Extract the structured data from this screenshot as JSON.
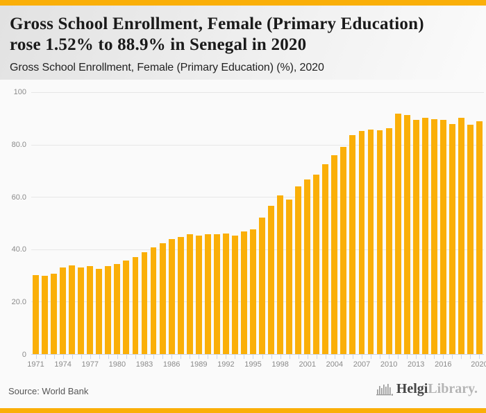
{
  "accent_color": "#FAAF08",
  "header": {
    "title_line1": "Gross School Enrollment, Female (Primary Education)",
    "title_line2": "rose 1.52% to 88.9% in Senegal in 2020",
    "subtitle": "Gross School Enrollment, Female (Primary Education) (%), 2020"
  },
  "chart_data": {
    "type": "bar",
    "title": "Gross School Enrollment, Female (Primary Education) rose 1.52% to 88.9% in Senegal in 2020",
    "subtitle": "Gross School Enrollment, Female (Primary Education) (%), 2020",
    "xlabel": "",
    "ylabel": "",
    "ylim": [
      0,
      100
    ],
    "grid": true,
    "legend": false,
    "bar_color": "#FAAF08",
    "grid_color": "#e6e6e6",
    "axis_color": "#ccd6eb",
    "tick_label_color": "#8a8a8a",
    "categories": [
      1971,
      1972,
      1973,
      1974,
      1975,
      1976,
      1977,
      1978,
      1979,
      1980,
      1981,
      1982,
      1983,
      1984,
      1985,
      1986,
      1987,
      1988,
      1989,
      1990,
      1991,
      1992,
      1993,
      1994,
      1995,
      1996,
      1997,
      1998,
      1999,
      2000,
      2001,
      2002,
      2003,
      2004,
      2005,
      2006,
      2007,
      2008,
      2009,
      2010,
      2011,
      2012,
      2013,
      2014,
      2015,
      2016,
      2017,
      2018,
      2019,
      2020
    ],
    "values": [
      30.1,
      30.0,
      30.6,
      33.2,
      33.8,
      33.2,
      33.5,
      32.5,
      33.5,
      34.5,
      35.8,
      37.1,
      39.0,
      40.7,
      42.3,
      43.8,
      44.7,
      45.7,
      45.3,
      45.8,
      45.9,
      46.0,
      45.3,
      46.7,
      47.6,
      52.0,
      56.6,
      60.6,
      59.1,
      64.0,
      66.7,
      68.4,
      72.6,
      75.8,
      79.1,
      83.6,
      85.1,
      85.6,
      85.4,
      86.3,
      91.9,
      91.4,
      89.3,
      90.3,
      89.7,
      89.5,
      87.8,
      90.1,
      87.6,
      88.9
    ],
    "x_tick_labels": [
      "1971",
      "1974",
      "1977",
      "1980",
      "1983",
      "1986",
      "1989",
      "1992",
      "1995",
      "1998",
      "2001",
      "2004",
      "2007",
      "2010",
      "2013",
      "2016",
      "2020"
    ],
    "y_ticks": [
      {
        "value": 0,
        "label": "0"
      },
      {
        "value": 20,
        "label": "20.0"
      },
      {
        "value": 40,
        "label": "40.0"
      },
      {
        "value": 60,
        "label": "60.0"
      },
      {
        "value": 80,
        "label": "80.0"
      },
      {
        "value": 100,
        "label": "100"
      }
    ]
  },
  "footer": {
    "source": "Source: World Bank",
    "brand_primary": "Helgi",
    "brand_secondary": "Library."
  }
}
